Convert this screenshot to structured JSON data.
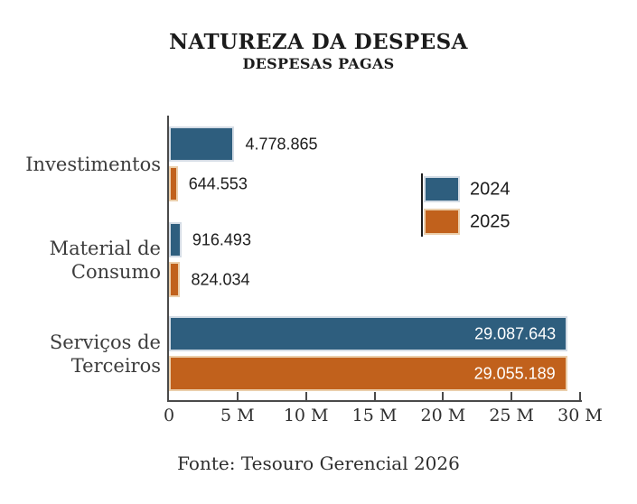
{
  "header": {
    "title": "NATUREZA DA DESPESA",
    "subtitle": "DESPESAS PAGAS"
  },
  "footer": {
    "source": "Fonte: Tesouro Gerencial 2026"
  },
  "colors": {
    "series_2024": "#2E5E7E",
    "series_2025": "#C1611C",
    "axis": "#4a4a4a",
    "text": "#1d1d1d"
  },
  "chart_data": {
    "type": "bar",
    "orientation": "horizontal",
    "title": "NATUREZA DA DESPESA",
    "subtitle": "DESPESAS PAGAS",
    "source": "Fonte: Tesouro Gerencial 2026",
    "categories": [
      "Investimentos",
      "Material de Consumo",
      "Serviços de Terceiros"
    ],
    "category_lines": [
      [
        "Investimentos"
      ],
      [
        "Material de",
        "Consumo"
      ],
      [
        "Serviços de",
        "Terceiros"
      ]
    ],
    "series": [
      {
        "name": "2024",
        "color": "#2E5E7E",
        "border_color": "#D4DCE5",
        "values": [
          4778865,
          916493,
          29087643
        ],
        "value_labels": [
          "4.778.865",
          "916.493",
          "29.087.643"
        ]
      },
      {
        "name": "2025",
        "color": "#C1611C",
        "border_color": "#EBCFAC",
        "values": [
          644553,
          824034,
          29055189
        ],
        "value_labels": [
          "644.553",
          "824.034",
          "29.055.189"
        ]
      }
    ],
    "xlim": [
      0,
      30000000
    ],
    "x_ticks": [
      {
        "value": 0,
        "label": "0"
      },
      {
        "value": 5000000,
        "label": "5 M"
      },
      {
        "value": 10000000,
        "label": "10 M"
      },
      {
        "value": 15000000,
        "label": "15 M"
      },
      {
        "value": 20000000,
        "label": "20 M"
      },
      {
        "value": 25000000,
        "label": "25 M"
      },
      {
        "value": 30000000,
        "label": "30 M"
      }
    ],
    "grid": false,
    "legend_position": "right-center"
  }
}
